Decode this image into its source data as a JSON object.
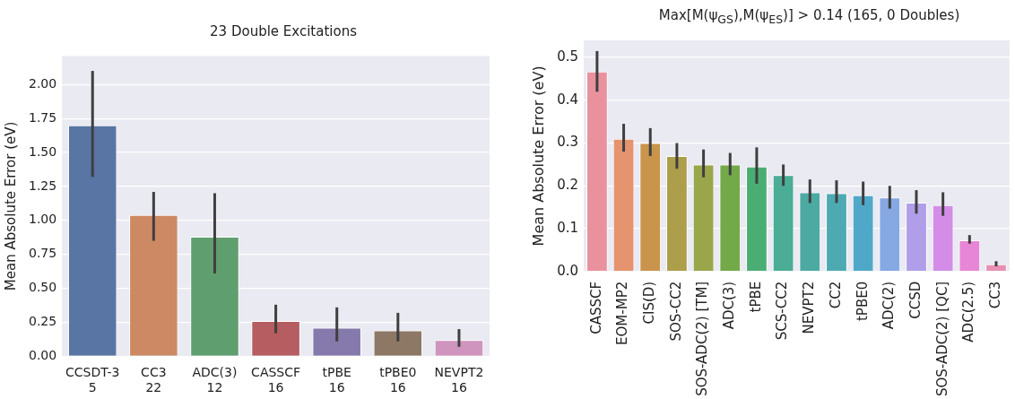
{
  "chart_data": [
    {
      "type": "bar",
      "title": "23 Double Excitations",
      "ylabel": "Mean Absolute Error (eV)",
      "categories": [
        "CCSDT-3\n5",
        "CC3\n22",
        "ADC(3)\n12",
        "CASSCF\n16",
        "tPBE\n16",
        "tPBE0\n16",
        "NEVPT2\n16"
      ],
      "values": [
        1.7,
        1.04,
        0.88,
        0.26,
        0.21,
        0.19,
        0.12
      ],
      "errors": [
        [
          1.32,
          2.1
        ],
        [
          0.85,
          1.21
        ],
        [
          0.61,
          1.2
        ],
        [
          0.17,
          0.38
        ],
        [
          0.11,
          0.36
        ],
        [
          0.11,
          0.32
        ],
        [
          0.07,
          0.2
        ]
      ],
      "colors": [
        "#5875a4",
        "#cc8963",
        "#5f9e6e",
        "#b55d60",
        "#857aab",
        "#8d7866",
        "#d095bf"
      ],
      "ylim": [
        0,
        2.21
      ],
      "yticks": [
        {
          "value": 0,
          "label": "0.00"
        },
        {
          "value": 0.25,
          "label": "0.25"
        },
        {
          "value": 0.5,
          "label": "0.50"
        },
        {
          "value": 0.75,
          "label": "0.75"
        },
        {
          "value": 1,
          "label": "1.00"
        },
        {
          "value": 1.25,
          "label": "1.25"
        },
        {
          "value": 1.5,
          "label": "1.50"
        },
        {
          "value": 1.75,
          "label": "1.75"
        },
        {
          "value": 2,
          "label": "2.00"
        }
      ],
      "grid": "y",
      "legend": false
    },
    {
      "type": "bar",
      "title": "Max[M(ψ$_{GS}$),M(ψ$_{ES}$)] > 0.14 (165, 0 Doubles)",
      "ylabel": "Mean Absolute Error (eV)",
      "categories": [
        "CASSCF",
        "EOM-MP2",
        "CIS(D)",
        "SOS-CC2",
        "SOS-ADC(2) [TM]",
        "ADC(3)",
        "tPBE",
        "SCS-CC2",
        "NEVPT2",
        "CC2",
        "tPBE0",
        "ADC(2)",
        "CCSD",
        "SOS-ADC(2) [QC]",
        "ADC(2.5)",
        "CC3"
      ],
      "values": [
        0.467,
        0.31,
        0.3,
        0.27,
        0.25,
        0.25,
        0.245,
        0.225,
        0.185,
        0.183,
        0.178,
        0.173,
        0.161,
        0.155,
        0.073,
        0.017
      ],
      "errors": [
        [
          0.42,
          0.515
        ],
        [
          0.28,
          0.345
        ],
        [
          0.27,
          0.335
        ],
        [
          0.24,
          0.3
        ],
        [
          0.22,
          0.285
        ],
        [
          0.225,
          0.277
        ],
        [
          0.205,
          0.29
        ],
        [
          0.2,
          0.25
        ],
        [
          0.16,
          0.215
        ],
        [
          0.16,
          0.213
        ],
        [
          0.155,
          0.21
        ],
        [
          0.147,
          0.2
        ],
        [
          0.135,
          0.19
        ],
        [
          0.13,
          0.185
        ],
        [
          0.065,
          0.085
        ],
        [
          0.012,
          0.024
        ]
      ],
      "colors": [
        "#e9929e",
        "#e6946f",
        "#c9944b",
        "#ac9e4a",
        "#9aa64a",
        "#74a94a",
        "#4aae74",
        "#4bad96",
        "#4caaa3",
        "#4daab2",
        "#50a8c9",
        "#86a8e3",
        "#b09ee9",
        "#d38de6",
        "#e786d6",
        "#e790b3"
      ],
      "ylim": [
        0,
        0.54
      ],
      "yticks": [
        {
          "value": 0,
          "label": "0.0"
        },
        {
          "value": 0.1,
          "label": "0.1"
        },
        {
          "value": 0.2,
          "label": "0.2"
        },
        {
          "value": 0.3,
          "label": "0.3"
        },
        {
          "value": 0.4,
          "label": "0.4"
        },
        {
          "value": 0.5,
          "label": "0.5"
        }
      ],
      "grid": "y",
      "legend": false
    }
  ]
}
